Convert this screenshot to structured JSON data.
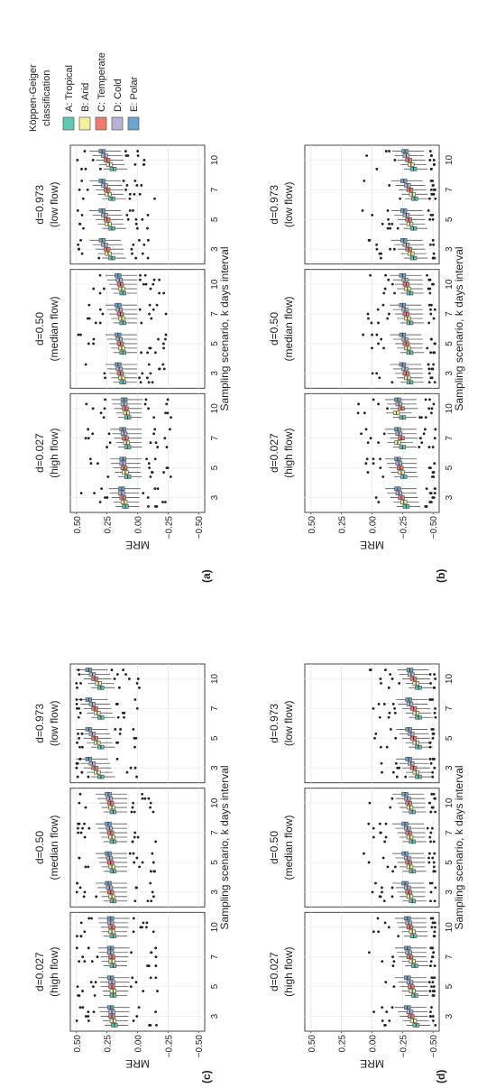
{
  "chart_data": {
    "type": "boxplot",
    "figure_label_xlabel": "Sampling scenario, k days interval",
    "ylabel": "MRE",
    "yticks": [
      "0.50",
      "0.25",
      "0.00",
      "−0.25",
      "−0.50"
    ],
    "ylim": [
      -0.55,
      0.55
    ],
    "x_categories": [
      "3",
      "5",
      "7",
      "10"
    ],
    "legend": {
      "title_line1": "Köppen-Geiger",
      "title_line2": "classification",
      "placement": "right",
      "entries": [
        {
          "label": "A: Tropical",
          "color": "#5fc7b4"
        },
        {
          "label": "B: Arid",
          "color": "#f3f0a2"
        },
        {
          "label": "C: Temperate",
          "color": "#ef7b6f"
        },
        {
          "label": "D: Cold",
          "color": "#b8b2d6"
        },
        {
          "label": "E: Polar",
          "color": "#6da4cf"
        }
      ]
    },
    "panel_titles": [
      {
        "line1": "d=0.027",
        "line2": "(high flow)"
      },
      {
        "line1": "d=0.50",
        "line2": "(median flow)"
      },
      {
        "line1": "d=0.973",
        "line2": "(low flow)"
      }
    ],
    "rows": [
      {
        "label": "(a)",
        "panels": [
          {
            "medians": [
              [
                0.1,
                0.11,
                0.12,
                0.13,
                0.13
              ],
              [
                0.08,
                0.1,
                0.11,
                0.12,
                0.12
              ],
              [
                0.08,
                0.09,
                0.1,
                0.11,
                0.12
              ],
              [
                0.08,
                0.09,
                0.1,
                0.11,
                0.11
              ]
            ]
          },
          {
            "medians": [
              [
                0.12,
                0.13,
                0.14,
                0.15,
                0.16
              ],
              [
                0.12,
                0.13,
                0.14,
                0.15,
                0.16
              ],
              [
                0.12,
                0.13,
                0.14,
                0.15,
                0.16
              ],
              [
                0.12,
                0.13,
                0.14,
                0.15,
                0.16
              ]
            ]
          },
          {
            "medians": [
              [
                0.21,
                0.24,
                0.25,
                0.27,
                0.29
              ],
              [
                0.21,
                0.24,
                0.25,
                0.27,
                0.29
              ],
              [
                0.21,
                0.24,
                0.25,
                0.27,
                0.29
              ],
              [
                0.2,
                0.23,
                0.25,
                0.27,
                0.29
              ]
            ]
          }
        ]
      },
      {
        "label": "(b)",
        "panels": [
          {
            "medians": [
              [
                -0.28,
                -0.26,
                -0.24,
                -0.22,
                -0.21
              ],
              [
                -0.26,
                -0.24,
                -0.23,
                -0.22,
                -0.21
              ],
              [
                -0.25,
                -0.21,
                -0.24,
                -0.22,
                -0.21
              ],
              [
                -0.25,
                -0.2,
                -0.24,
                -0.22,
                -0.21
              ]
            ]
          },
          {
            "medians": [
              [
                -0.31,
                -0.29,
                -0.28,
                -0.27,
                -0.25
              ],
              [
                -0.31,
                -0.29,
                -0.28,
                -0.27,
                -0.25
              ],
              [
                -0.31,
                -0.29,
                -0.28,
                -0.27,
                -0.25
              ],
              [
                -0.31,
                -0.29,
                -0.28,
                -0.27,
                -0.25
              ]
            ]
          },
          {
            "medians": [
              [
                -0.34,
                -0.32,
                -0.3,
                -0.28,
                -0.26
              ],
              [
                -0.34,
                -0.31,
                -0.3,
                -0.28,
                -0.26
              ],
              [
                -0.35,
                -0.33,
                -0.31,
                -0.29,
                -0.26
              ],
              [
                -0.34,
                -0.32,
                -0.3,
                -0.28,
                -0.27
              ]
            ]
          }
        ]
      },
      {
        "label": "(c)",
        "panels": [
          {
            "medians": [
              [
                0.19,
                0.2,
                0.21,
                0.21,
                0.22
              ],
              [
                0.2,
                0.2,
                0.21,
                0.21,
                0.22
              ],
              [
                0.2,
                0.21,
                0.21,
                0.22,
                0.22
              ],
              [
                0.2,
                0.21,
                0.21,
                0.22,
                0.22
              ]
            ]
          },
          {
            "medians": [
              [
                0.2,
                0.21,
                0.22,
                0.23,
                0.24
              ],
              [
                0.2,
                0.21,
                0.22,
                0.23,
                0.24
              ],
              [
                0.2,
                0.21,
                0.22,
                0.23,
                0.24
              ],
              [
                0.2,
                0.21,
                0.22,
                0.23,
                0.24
              ]
            ]
          },
          {
            "medians": [
              [
                0.3,
                0.33,
                0.35,
                0.37,
                0.4
              ],
              [
                0.3,
                0.33,
                0.35,
                0.37,
                0.4
              ],
              [
                0.3,
                0.33,
                0.35,
                0.37,
                0.4
              ],
              [
                0.3,
                0.32,
                0.35,
                0.37,
                0.4
              ]
            ]
          }
        ]
      },
      {
        "label": "(d)",
        "panels": [
          {
            "medians": [
              [
                -0.36,
                -0.34,
                -0.32,
                -0.31,
                -0.29
              ],
              [
                -0.35,
                -0.33,
                -0.32,
                -0.31,
                -0.29
              ],
              [
                -0.35,
                -0.33,
                -0.31,
                -0.3,
                -0.29
              ],
              [
                -0.34,
                -0.33,
                -0.31,
                -0.3,
                -0.29
              ]
            ]
          },
          {
            "medians": [
              [
                -0.33,
                -0.31,
                -0.3,
                -0.29,
                -0.27
              ],
              [
                -0.33,
                -0.31,
                -0.3,
                -0.29,
                -0.27
              ],
              [
                -0.33,
                -0.31,
                -0.3,
                -0.29,
                -0.27
              ],
              [
                -0.33,
                -0.31,
                -0.3,
                -0.29,
                -0.27
              ]
            ]
          },
          {
            "medians": [
              [
                -0.38,
                -0.36,
                -0.34,
                -0.32,
                -0.3
              ],
              [
                -0.38,
                -0.36,
                -0.34,
                -0.32,
                -0.3
              ],
              [
                -0.38,
                -0.36,
                -0.34,
                -0.31,
                -0.3
              ],
              [
                -0.38,
                -0.36,
                -0.34,
                -0.32,
                -0.31
              ]
            ]
          }
        ]
      }
    ]
  }
}
